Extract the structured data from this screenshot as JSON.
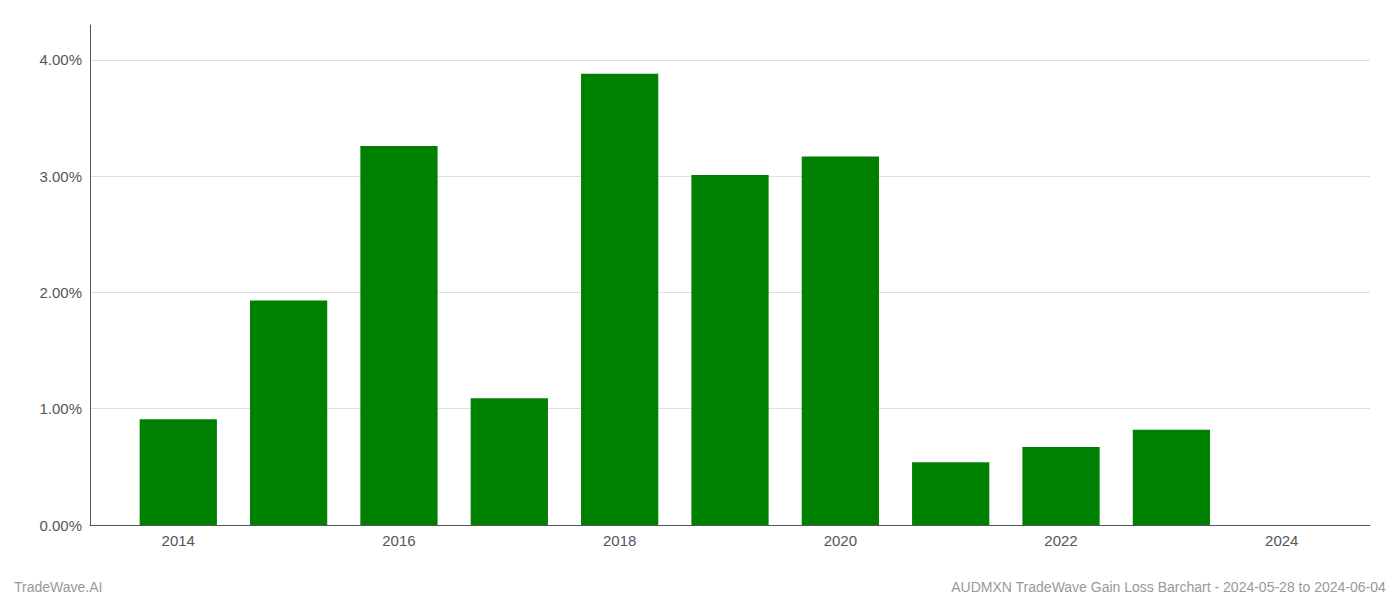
{
  "chart_data": {
    "type": "bar",
    "x": [
      2014,
      2015,
      2016,
      2017,
      2018,
      2019,
      2020,
      2021,
      2022,
      2023
    ],
    "values": [
      0.0091,
      0.0193,
      0.0326,
      0.0109,
      0.0388,
      0.0301,
      0.0317,
      0.0054,
      0.0067,
      0.0082
    ],
    "color": "#008000",
    "xlim": [
      2013.2,
      2024.8
    ],
    "xticks": [
      2014,
      2016,
      2018,
      2020,
      2022,
      2024
    ],
    "ylim": [
      0,
      0.043
    ],
    "yticks": [
      {
        "value": 0.0,
        "label": "0.00%"
      },
      {
        "value": 0.01,
        "label": "1.00%"
      },
      {
        "value": 0.02,
        "label": "2.00%"
      },
      {
        "value": 0.03,
        "label": "3.00%"
      },
      {
        "value": 0.04,
        "label": "4.00%"
      }
    ],
    "grid": true,
    "annotations": [
      "TradeWave.AI",
      "AUDMXN TradeWave Gain Loss Barchart - 2024-05-28 to 2024-06-04"
    ]
  }
}
